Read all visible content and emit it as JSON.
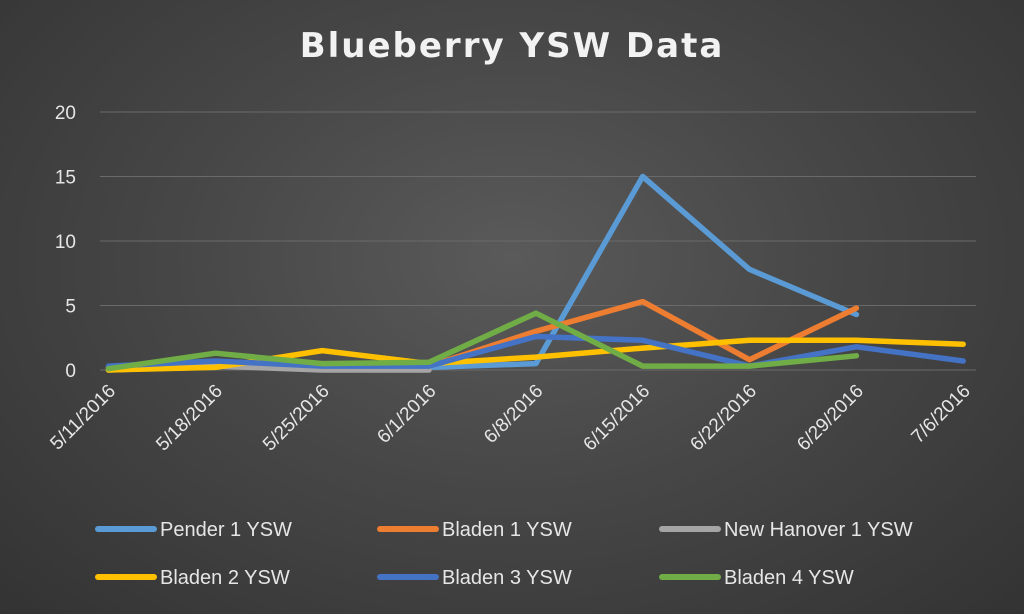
{
  "chart_data": {
    "type": "line",
    "title": "Blueberry YSW Data",
    "xlabel": "",
    "ylabel": "",
    "x": [
      "5/11/2016",
      "5/18/2016",
      "5/25/2016",
      "6/1/2016",
      "6/8/2016",
      "6/15/2016",
      "6/22/2016",
      "6/29/2016",
      "7/6/2016"
    ],
    "ylim": [
      0,
      20
    ],
    "yticks": [
      "0",
      "5",
      "10",
      "15",
      "20"
    ],
    "grid": true,
    "legend_position": "bottom",
    "series": [
      {
        "name": "Pender 1 YSW",
        "color": "#5b9bd5",
        "points": [
          [
            "5/11/2016",
            0.2
          ],
          [
            "5/18/2016",
            0.5
          ],
          [
            "5/25/2016",
            0.2
          ],
          [
            "6/1/2016",
            0.2
          ],
          [
            "6/8/2016",
            0.5
          ],
          [
            "6/15/2016",
            15
          ],
          [
            "6/22/2016",
            7.8
          ],
          [
            "6/29/2016",
            4.3
          ]
        ]
      },
      {
        "name": "Bladen 1 YSW",
        "color": "#ed7d31",
        "points": [
          [
            "5/11/2016",
            0.2
          ],
          [
            "5/18/2016",
            0.5
          ],
          [
            "5/25/2016",
            0.3
          ],
          [
            "6/1/2016",
            0.3
          ],
          [
            "6/8/2016",
            3
          ],
          [
            "6/15/2016",
            5.3
          ],
          [
            "6/22/2016",
            0.8
          ],
          [
            "6/29/2016",
            4.8
          ]
        ]
      },
      {
        "name": "New Hanover 1 YSW",
        "color": "#a5a5a5",
        "points": [
          [
            "5/11/2016",
            0
          ],
          [
            "5/18/2016",
            0.3
          ],
          [
            "5/25/2016",
            0
          ],
          [
            "6/1/2016",
            0
          ]
        ]
      },
      {
        "name": "Bladen 2 YSW",
        "color": "#ffc000",
        "points": [
          [
            "5/11/2016",
            0
          ],
          [
            "5/18/2016",
            0.2
          ],
          [
            "5/25/2016",
            1.5
          ],
          [
            "6/1/2016",
            0.5
          ],
          [
            "6/8/2016",
            1
          ],
          [
            "6/15/2016",
            1.7
          ],
          [
            "6/22/2016",
            2.3
          ],
          [
            "6/29/2016",
            2.3
          ],
          [
            "7/6/2016",
            2
          ]
        ]
      },
      {
        "name": "Bladen 3 YSW",
        "color": "#4472c4",
        "points": [
          [
            "5/11/2016",
            0.3
          ],
          [
            "5/18/2016",
            0.7
          ],
          [
            "5/25/2016",
            0.3
          ],
          [
            "6/1/2016",
            0.3
          ],
          [
            "6/8/2016",
            2.6
          ],
          [
            "6/15/2016",
            2.3
          ],
          [
            "6/22/2016",
            0.3
          ],
          [
            "6/29/2016",
            1.8
          ],
          [
            "7/6/2016",
            0.7
          ]
        ]
      },
      {
        "name": "Bladen 4 YSW",
        "color": "#70ad47",
        "points": [
          [
            "5/11/2016",
            0.1
          ],
          [
            "5/18/2016",
            1.3
          ],
          [
            "5/25/2016",
            0.5
          ],
          [
            "6/1/2016",
            0.6
          ],
          [
            "6/8/2016",
            4.4
          ],
          [
            "6/15/2016",
            0.3
          ],
          [
            "6/22/2016",
            0.3
          ],
          [
            "6/29/2016",
            1.1
          ]
        ]
      }
    ]
  }
}
